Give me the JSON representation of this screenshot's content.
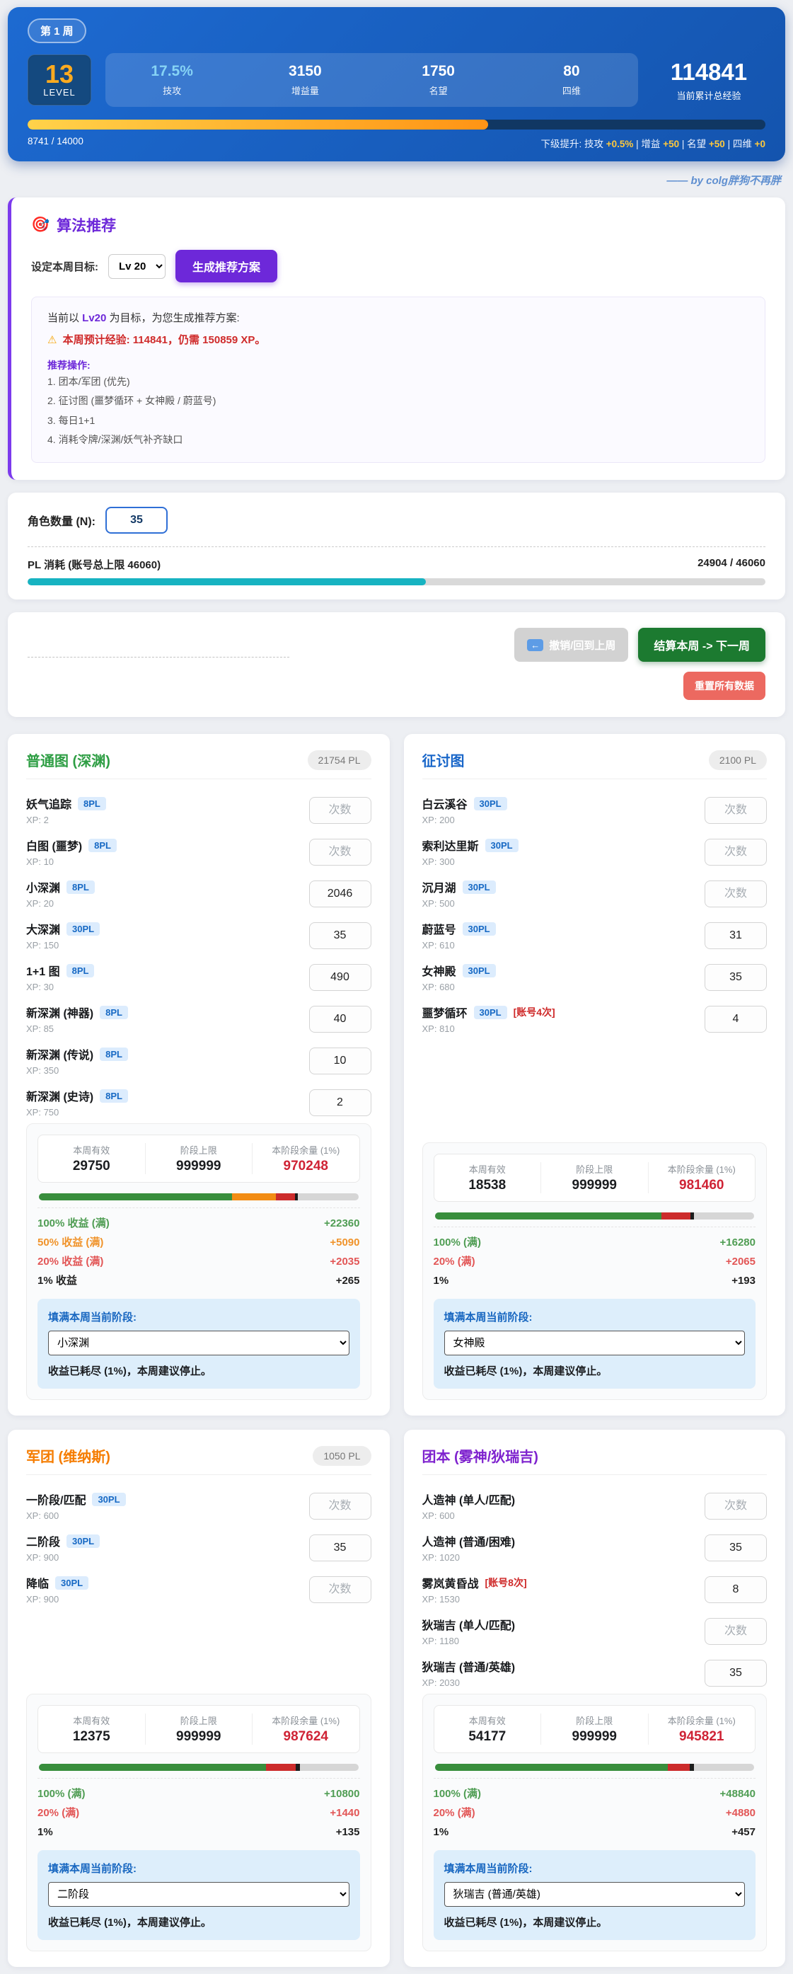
{
  "header": {
    "week_badge": "第 1 周",
    "level": {
      "value": "13",
      "label": "LEVEL"
    },
    "stats": [
      {
        "value": "17.5%",
        "label": "技攻"
      },
      {
        "value": "3150",
        "label": "增益量"
      },
      {
        "value": "1750",
        "label": "名望"
      },
      {
        "value": "80",
        "label": "四维"
      }
    ],
    "total_xp": {
      "value": "114841",
      "label": "当前累计总经验"
    },
    "xp_progress": {
      "text": "8741 / 14000",
      "width": "62.4%"
    },
    "next_level": {
      "labels": [
        "下级提升: 技攻",
        "| 增益",
        "| 名望",
        "| 四维"
      ],
      "values": [
        "+0.5%",
        "+50",
        "+50",
        "+0"
      ]
    }
  },
  "credit": "—— by colg胖狗不再胖",
  "recommend": {
    "icon": "🎯",
    "title": "算法推荐",
    "goal_label": "设定本周目标:",
    "goal_value": "Lv 20",
    "generate_button": "生成推荐方案",
    "result": {
      "line1_prefix": "当前以 ",
      "line1_target": "Lv20",
      "line1_suffix": " 为目标，为您生成推荐方案:",
      "warning_icon": "⚠",
      "warning": "本周预计经验: 114841，仍需 150859 XP。",
      "ops_title": "推荐操作:",
      "ops": [
        "1. 团本/军团 (优先)",
        "2. 征讨图 (噩梦循环 + 女神殿 / 蔚蓝号)",
        "3. 每日1+1",
        "4. 消耗令牌/深渊/妖气补齐缺口"
      ]
    }
  },
  "roster": {
    "label": "角色数量 (N):",
    "value": "35",
    "pl_label": "PL 消耗 (账号总上限 46060)",
    "pl_text": "24904 / 46060",
    "pl_width": "54%"
  },
  "actions": {
    "undo_icon": "←",
    "undo": "撤销/回到上周",
    "settle": "结算本周 -> 下一周",
    "reset": "重置所有数据"
  },
  "cards": [
    {
      "title": "普通图 (深渊)",
      "color": "#2e9e44",
      "pl_badge": "21754 PL",
      "items": [
        {
          "name": "妖气追踪",
          "pl": "8PL",
          "xp": "XP: 2",
          "placeholder": "次数"
        },
        {
          "name": "白图 (噩梦)",
          "pl": "8PL",
          "xp": "XP: 10",
          "placeholder": "次数"
        },
        {
          "name": "小深渊",
          "pl": "8PL",
          "xp": "XP: 20",
          "value": "2046"
        },
        {
          "name": "大深渊",
          "pl": "30PL",
          "xp": "XP: 150",
          "value": "35"
        },
        {
          "name": "1+1 图",
          "pl": "8PL",
          "xp": "XP: 30",
          "value": "490"
        },
        {
          "name": "新深渊 (神器)",
          "pl": "8PL",
          "xp": "XP: 85",
          "value": "40"
        },
        {
          "name": "新深渊 (传说)",
          "pl": "8PL",
          "xp": "XP: 350",
          "value": "10"
        },
        {
          "name": "新深渊 (史诗)",
          "pl": "8PL",
          "xp": "XP: 750",
          "value": "2"
        }
      ],
      "summary": {
        "stats": [
          {
            "label": "本周有效",
            "value": "29750"
          },
          {
            "label": "阶段上限",
            "value": "999999"
          },
          {
            "label": "本阶段余量 (1%)",
            "value": "970248"
          }
        ],
        "bar": [
          {
            "color": "#388e3c",
            "width": "60.5%"
          },
          {
            "color": "#f28c13",
            "width": "13.8%"
          },
          {
            "color": "#cc2b2b",
            "width": "5.8%"
          },
          {
            "color": "#1d1d1d",
            "width": "1%"
          }
        ],
        "rows": [
          {
            "label": "100% 收益 (满)",
            "value": "+22360",
            "color": "#4f9d53"
          },
          {
            "label": "50% 收益 (满)",
            "value": "+5090",
            "color": "#f0932a"
          },
          {
            "label": "20% 收益 (满)",
            "value": "+2035",
            "color": "#e25656"
          },
          {
            "label": "1% 收益",
            "value": "+265",
            "color": "#222222"
          }
        ],
        "fill_label": "填满本周当前阶段:",
        "fill_value": "小深渊",
        "stop_text": "收益已耗尽 (1%)，本周建议停止。"
      }
    },
    {
      "title": "征讨图",
      "color": "#1a67c9",
      "pl_badge": "2100 PL",
      "items": [
        {
          "name": "白云溪谷",
          "pl": "30PL",
          "xp": "XP: 200",
          "placeholder": "次数"
        },
        {
          "name": "索利达里斯",
          "pl": "30PL",
          "xp": "XP: 300",
          "placeholder": "次数"
        },
        {
          "name": "沉月湖",
          "pl": "30PL",
          "xp": "XP: 500",
          "placeholder": "次数"
        },
        {
          "name": "蔚蓝号",
          "pl": "30PL",
          "xp": "XP: 610",
          "value": "31"
        },
        {
          "name": "女神殿",
          "pl": "30PL",
          "xp": "XP: 680",
          "value": "35"
        },
        {
          "name": "噩梦循环",
          "pl": "30PL",
          "note": "[账号4次]",
          "xp": "XP: 810",
          "value": "4"
        }
      ],
      "summary": {
        "stats": [
          {
            "label": "本周有效",
            "value": "18538"
          },
          {
            "label": "阶段上限",
            "value": "999999"
          },
          {
            "label": "本阶段余量 (1%)",
            "value": "981460"
          }
        ],
        "bar": [
          {
            "color": "#388e3c",
            "width": "71%"
          },
          {
            "color": "#cc2b2b",
            "width": "9%"
          },
          {
            "color": "#1d1d1d",
            "width": "1.2%"
          }
        ],
        "rows": [
          {
            "label": "100% (满)",
            "value": "+16280",
            "color": "#4f9d53"
          },
          {
            "label": "20% (满)",
            "value": "+2065",
            "color": "#e25656"
          },
          {
            "label": "1%",
            "value": "+193",
            "color": "#222222"
          }
        ],
        "fill_label": "填满本周当前阶段:",
        "fill_value": "女神殿",
        "stop_text": "收益已耗尽 (1%)，本周建议停止。"
      }
    },
    {
      "title": "军团 (维纳斯)",
      "color": "#f57c00",
      "pl_badge": "1050 PL",
      "items": [
        {
          "name": "一阶段/匹配",
          "pl": "30PL",
          "xp": "XP: 600",
          "placeholder": "次数"
        },
        {
          "name": "二阶段",
          "pl": "30PL",
          "xp": "XP: 900",
          "value": "35"
        },
        {
          "name": "降临",
          "pl": "30PL",
          "xp": "XP: 900",
          "placeholder": "次数"
        }
      ],
      "summary": {
        "stats": [
          {
            "label": "本周有效",
            "value": "12375"
          },
          {
            "label": "阶段上限",
            "value": "999999"
          },
          {
            "label": "本阶段余量 (1%)",
            "value": "987624"
          }
        ],
        "bar": [
          {
            "color": "#388e3c",
            "width": "71%"
          },
          {
            "color": "#cc2b2b",
            "width": "9.5%"
          },
          {
            "color": "#1d1d1d",
            "width": "1.2%"
          }
        ],
        "rows": [
          {
            "label": "100% (满)",
            "value": "+10800",
            "color": "#4f9d53"
          },
          {
            "label": "20% (满)",
            "value": "+1440",
            "color": "#e25656"
          },
          {
            "label": "1%",
            "value": "+135",
            "color": "#222222"
          }
        ],
        "fill_label": "填满本周当前阶段:",
        "fill_value": "二阶段",
        "stop_text": "收益已耗尽 (1%)，本周建议停止。"
      }
    },
    {
      "title": "团本 (雾神/狄瑞吉)",
      "color": "#7e22ce",
      "items": [
        {
          "name": "人造神 (单人/匹配)",
          "xp": "XP: 600",
          "placeholder": "次数"
        },
        {
          "name": "人造神 (普通/困难)",
          "xp": "XP: 1020",
          "value": "35"
        },
        {
          "name": "雾岚黄昏战",
          "note": "[账号8次]",
          "xp": "XP: 1530",
          "value": "8"
        },
        {
          "name": "狄瑞吉 (单人/匹配)",
          "xp": "XP: 1180",
          "placeholder": "次数"
        },
        {
          "name": "狄瑞吉 (普通/英雄)",
          "xp": "XP: 2030",
          "value": "35"
        }
      ],
      "summary": {
        "stats": [
          {
            "label": "本周有效",
            "value": "54177"
          },
          {
            "label": "阶段上限",
            "value": "999999"
          },
          {
            "label": "本阶段余量 (1%)",
            "value": "945821"
          }
        ],
        "bar": [
          {
            "color": "#388e3c",
            "width": "73%"
          },
          {
            "color": "#cc2b2b",
            "width": "6.8%"
          },
          {
            "color": "#1d1d1d",
            "width": "1.4%"
          }
        ],
        "rows": [
          {
            "label": "100% (满)",
            "value": "+48840",
            "color": "#4f9d53"
          },
          {
            "label": "20% (满)",
            "value": "+4880",
            "color": "#e25656"
          },
          {
            "label": "1%",
            "value": "+457",
            "color": "#222222"
          }
        ],
        "fill_label": "填满本周当前阶段:",
        "fill_value": "狄瑞吉 (普通/英雄)",
        "stop_text": "收益已耗尽 (1%)，本周建议停止。"
      }
    }
  ]
}
